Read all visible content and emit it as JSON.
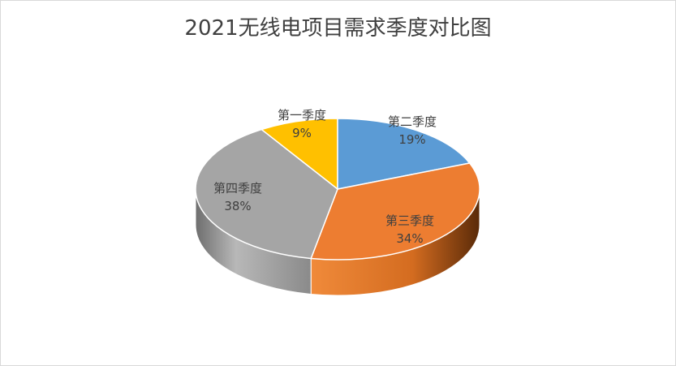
{
  "chart_data": {
    "type": "pie",
    "title": "2021无线电项目需求季度对比图",
    "slices": [
      {
        "label": "第一季度",
        "value": 9,
        "pct_label": "9%",
        "color": "#FFC000"
      },
      {
        "label": "第二季度",
        "value": 19,
        "pct_label": "19%",
        "color": "#5B9BD5"
      },
      {
        "label": "第三季度",
        "value": 34,
        "pct_label": "34%",
        "color": "#ED7D31"
      },
      {
        "label": "第四季度",
        "value": 38,
        "pct_label": "38%",
        "color": "#A5A5A5"
      }
    ],
    "style": "3d-pie"
  }
}
